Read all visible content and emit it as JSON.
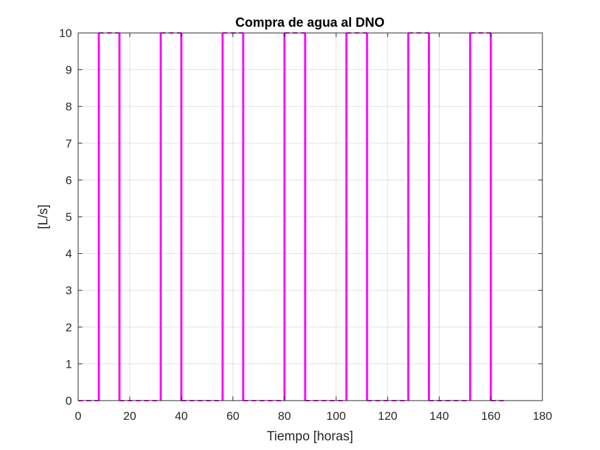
{
  "chart_data": {
    "type": "line",
    "title": "Compra de agua al DNO",
    "xlabel": "Tiempo [horas]",
    "ylabel": "[L/s]",
    "xlim": [
      0,
      180
    ],
    "ylim": [
      0,
      10
    ],
    "xticks": [
      0,
      20,
      40,
      60,
      80,
      100,
      120,
      140,
      160,
      180
    ],
    "yticks": [
      0,
      1,
      2,
      3,
      4,
      5,
      6,
      7,
      8,
      9,
      10
    ],
    "grid": true,
    "legend": "none",
    "series": [
      {
        "color": "#ff00ff",
        "style": "dashed-step",
        "x": [
          0,
          8,
          8,
          16,
          16,
          32,
          32,
          40,
          40,
          56,
          56,
          64,
          64,
          80,
          80,
          88,
          88,
          104,
          104,
          112,
          112,
          128,
          128,
          136,
          136,
          152,
          152,
          160,
          160,
          166
        ],
        "y": [
          0,
          0,
          10,
          10,
          0,
          0,
          10,
          10,
          0,
          0,
          10,
          10,
          0,
          0,
          10,
          10,
          0,
          0,
          10,
          10,
          0,
          0,
          10,
          10,
          0,
          0,
          10,
          10,
          0,
          0
        ]
      }
    ]
  }
}
